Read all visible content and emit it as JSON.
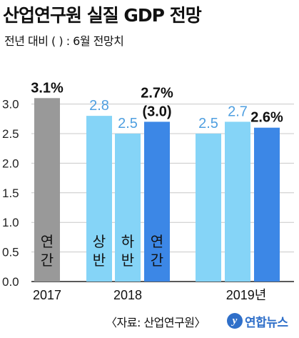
{
  "title": "산업연구원 실질 GDP 전망",
  "subtitle": "전년 대비   ( ) : 6월 전망치",
  "footer": "〈자료: 산업연구원〉",
  "logo": {
    "icon": "yonhap-logo-icon",
    "mark": "y",
    "text": "연합뉴스"
  },
  "colors": {
    "gray": "#999999",
    "light": "#85d4f7",
    "blue": "#3c87e6",
    "light_text": "#4f9fe0",
    "grid": "#c8c8c8"
  },
  "chart_data": {
    "type": "bar",
    "ylim": [
      0,
      3.0
    ],
    "yticks": [
      "0.0",
      "0.5",
      "1.0",
      "1.5",
      "2.0",
      "2.5",
      "3.0"
    ],
    "groups": [
      "2017",
      "2018",
      "2019년"
    ],
    "bars": [
      {
        "group": "2017",
        "label": "연간",
        "value": 3.1,
        "value_label": "3.1%",
        "style": "gray"
      },
      {
        "group": "2018",
        "label": "상반",
        "value": 2.8,
        "value_label": "2.8",
        "style": "light"
      },
      {
        "group": "2018",
        "label": "하반",
        "value": 2.5,
        "value_label": "2.5",
        "style": "light"
      },
      {
        "group": "2018",
        "label": "연간",
        "value": 2.7,
        "value_label": "2.7%",
        "note": "(3.0)",
        "style": "blue"
      },
      {
        "group": "2019년",
        "label": "",
        "value": 2.5,
        "value_label": "2.5",
        "style": "light"
      },
      {
        "group": "2019년",
        "label": "",
        "value": 2.7,
        "value_label": "2.7",
        "style": "light"
      },
      {
        "group": "2019년",
        "label": "",
        "value": 2.6,
        "value_label": "2.6%",
        "style": "blue"
      }
    ]
  }
}
